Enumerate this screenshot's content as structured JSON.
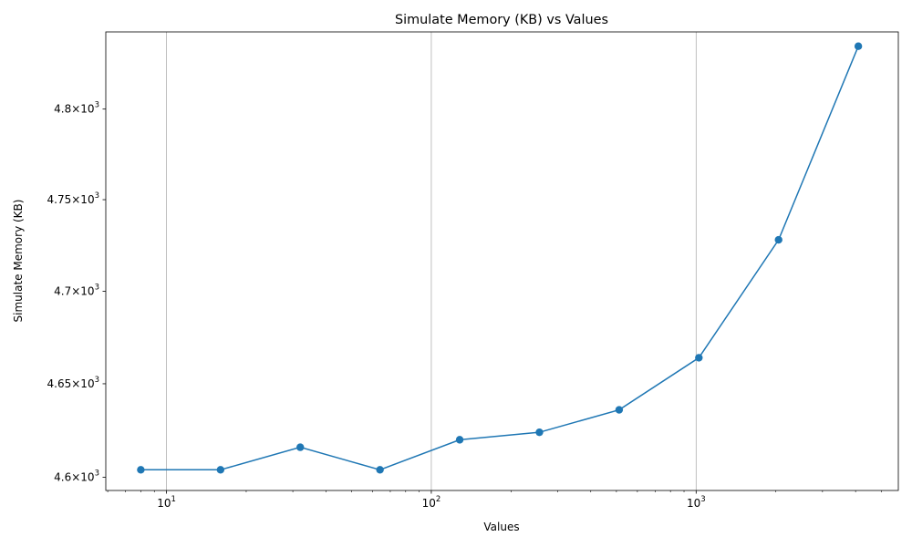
{
  "chart_data": {
    "type": "line",
    "title": "Simulate Memory (KB) vs Values",
    "xlabel": "Values",
    "ylabel": "Simulate Memory (KB)",
    "xscale": "log",
    "yscale": "log",
    "xlim": [
      5.9,
      5800
    ],
    "ylim": [
      4593,
      4843
    ],
    "x_ticks": [
      {
        "base": "10",
        "exp": "1",
        "value": 10
      },
      {
        "base": "10",
        "exp": "2",
        "value": 100
      },
      {
        "base": "10",
        "exp": "3",
        "value": 1000
      }
    ],
    "y_ticks": [
      {
        "mantissa": "4.6",
        "exp": "3",
        "value": 4600
      },
      {
        "mantissa": "4.65",
        "exp": "3",
        "value": 4650
      },
      {
        "mantissa": "4.7",
        "exp": "3",
        "value": 4700
      },
      {
        "mantissa": "4.75",
        "exp": "3",
        "value": 4750
      },
      {
        "mantissa": "4.8",
        "exp": "3",
        "value": 4800
      }
    ],
    "grid": "x-major",
    "color": "#1f77b4",
    "series": [
      {
        "x": [
          8,
          16,
          32,
          64,
          128,
          256,
          512,
          1024,
          2048,
          4096
        ],
        "y": [
          4604,
          4604,
          4616,
          4604,
          4620,
          4624,
          4636,
          4664,
          4728,
          4835
        ]
      }
    ]
  }
}
